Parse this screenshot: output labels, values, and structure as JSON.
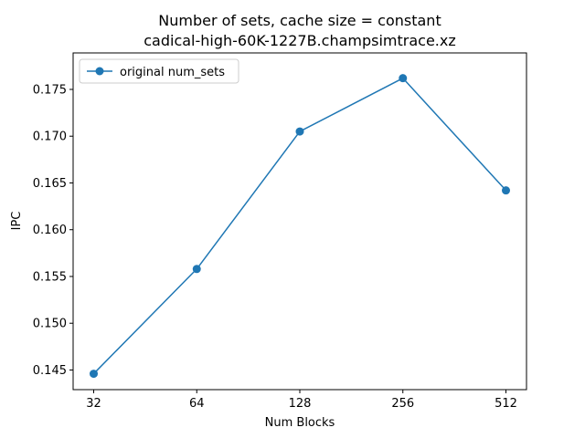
{
  "chart_data": {
    "type": "line",
    "title_line1": "Number of sets, cache size = constant",
    "title_line2": "cadical-high-60K-1227B.champsimtrace.xz",
    "xlabel": "Num Blocks",
    "ylabel": "IPC",
    "x": [
      "32",
      "64",
      "128",
      "256",
      "512"
    ],
    "xscale": "log2",
    "yticks": [
      "0.145",
      "0.150",
      "0.155",
      "0.160",
      "0.165",
      "0.170",
      "0.175"
    ],
    "ylim": [
      0.1429,
      0.1789
    ],
    "series": [
      {
        "name": "original num_sets",
        "color": "#1f77b4",
        "marker": "circle",
        "values": [
          0.1446,
          0.1558,
          0.1705,
          0.1762,
          0.1642
        ]
      }
    ],
    "legend": "top-left",
    "grid": false
  }
}
